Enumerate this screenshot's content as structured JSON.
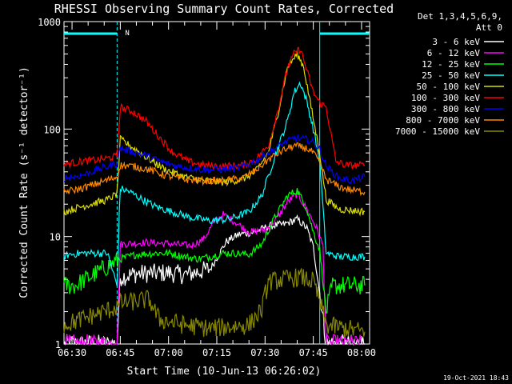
{
  "chart_data": {
    "type": "line",
    "title": "RHESSI Observing Summary Count Rates, Corrected",
    "xlabel": "Start Time (10-Jun-13 06:26:02)",
    "ylabel": "Corrected Count Rate (s⁻¹ detector⁻¹)",
    "y_scale": "log",
    "ylim": [
      1,
      1000
    ],
    "xlim_minutes": [
      6.5,
      101.5
    ],
    "x_tick_labels": [
      "06:30",
      "06:45",
      "07:00",
      "07:15",
      "07:30",
      "07:45",
      "08:00"
    ],
    "x_tick_minutes": [
      9,
      24,
      39,
      54,
      69,
      84,
      99
    ],
    "y_tick_labels": [
      "1",
      "10",
      "100",
      "1000"
    ],
    "y_tick_values": [
      1,
      10,
      100,
      1000
    ],
    "legend_header_1": "Det 1,3,4,5,6,9,",
    "legend_header_2": "Att 0",
    "legend_placement": "right",
    "footer_date": "19-Oct-2021 18:43",
    "night_marker_label": "N",
    "night_intervals_minutes": [
      [
        6.5,
        23
      ],
      [
        86,
        101.5
      ]
    ],
    "series": [
      {
        "name": "3 - 6 keV",
        "color": "#ffffff",
        "x": [
          6.5,
          23,
          24,
          29,
          39,
          44,
          52,
          57,
          61,
          66,
          70,
          75,
          79,
          82,
          84,
          86,
          88,
          100
        ],
        "y": [
          1,
          1,
          4.2,
          4.5,
          4.6,
          4.4,
          5.0,
          9.0,
          10.5,
          11.0,
          12.5,
          13,
          14.5,
          12,
          8,
          3.0,
          1,
          1
        ]
      },
      {
        "name": "6 - 12 keV",
        "color": "#ff00ff",
        "x": [
          6.5,
          23,
          24,
          32,
          39,
          46,
          50,
          53,
          56,
          60,
          64,
          69,
          73,
          76,
          79,
          82,
          85,
          87,
          88,
          90,
          100
        ],
        "y": [
          1,
          1,
          8.5,
          8.8,
          8.6,
          8.2,
          9.5,
          13.5,
          16,
          13.5,
          11,
          11.5,
          15,
          21,
          25,
          18,
          12,
          8.2,
          1,
          1,
          1
        ]
      },
      {
        "name": "12 - 25 keV",
        "color": "#00ff00",
        "x": [
          6.5,
          10,
          24,
          29,
          35,
          39,
          44,
          48,
          52,
          56,
          60,
          64,
          68,
          72,
          76,
          79,
          82,
          84,
          86,
          88,
          90,
          95,
          100
        ],
        "y": [
          3.5,
          3.5,
          6.2,
          6.8,
          7.0,
          7.0,
          6.5,
          6.2,
          6.5,
          7,
          7,
          6.8,
          8.5,
          15,
          24,
          27,
          18,
          11,
          7.5,
          2,
          3.5,
          3.5,
          3.5
        ]
      },
      {
        "name": "25 - 50 keV",
        "color": "#00ffff",
        "x": [
          6.5,
          8,
          12,
          20,
          23,
          24,
          27,
          31,
          35,
          40,
          46,
          52,
          58,
          64,
          68,
          72,
          76,
          78,
          80,
          82,
          84,
          86,
          88,
          92,
          100
        ],
        "y": [
          6.5,
          6.8,
          7,
          7,
          3.5,
          28,
          26,
          22,
          19,
          17,
          15,
          14,
          14.5,
          17,
          24,
          55,
          120,
          220,
          270,
          180,
          100,
          50,
          7,
          6.5,
          6.5
        ]
      },
      {
        "name": "50 - 100 keV",
        "color": "#dddd00",
        "x": [
          6.5,
          12,
          20,
          23,
          24,
          27,
          32,
          38,
          44,
          50,
          56,
          62,
          66,
          70,
          73,
          76,
          79,
          81,
          83,
          86,
          88,
          92,
          100
        ],
        "y": [
          17,
          19,
          22,
          25,
          80,
          70,
          55,
          42,
          36,
          33,
          32,
          34,
          40,
          60,
          140,
          380,
          500,
          380,
          180,
          60,
          22,
          18,
          17
        ]
      },
      {
        "name": "100 - 300 keV",
        "color": "#ff0000",
        "x": [
          6.5,
          12,
          18,
          23,
          24,
          28,
          32,
          36,
          40,
          45,
          50,
          56,
          62,
          66,
          70,
          73,
          76,
          78,
          80,
          82,
          84,
          86,
          88,
          91,
          94,
          100
        ],
        "y": [
          47,
          50,
          52,
          56,
          160,
          145,
          118,
          85,
          62,
          50,
          46,
          45,
          46,
          52,
          70,
          150,
          370,
          500,
          560,
          350,
          220,
          175,
          160,
          50,
          46,
          46
        ]
      },
      {
        "name": "300 - 800 keV",
        "color": "#0000ff",
        "x": [
          6.5,
          12,
          18,
          23,
          24,
          28,
          33,
          38,
          44,
          50,
          56,
          62,
          66,
          70,
          74,
          78,
          82,
          84,
          86,
          88,
          92,
          96,
          100
        ],
        "y": [
          35,
          37,
          43,
          48,
          66,
          62,
          55,
          48,
          44,
          42,
          42,
          44,
          50,
          60,
          72,
          82,
          80,
          75,
          65,
          45,
          35,
          33,
          36
        ]
      },
      {
        "name": "800 - 7000 keV",
        "color": "#ff8800",
        "x": [
          6.5,
          12,
          18,
          23,
          24,
          28,
          33,
          38,
          44,
          50,
          56,
          62,
          66,
          70,
          74,
          78,
          82,
          84,
          86,
          88,
          92,
          96,
          100
        ],
        "y": [
          26,
          28,
          32,
          36,
          46,
          45,
          42,
          37,
          34,
          33,
          33,
          35,
          41,
          52,
          62,
          70,
          66,
          60,
          48,
          34,
          29,
          27,
          26
        ]
      },
      {
        "name": "7000 - 15000 keV",
        "color": "#888800",
        "x": [
          6.5,
          23,
          24,
          33,
          36,
          44,
          52,
          64,
          68,
          70,
          80,
          84,
          86,
          88,
          100
        ],
        "y": [
          1.5,
          2.2,
          2.4,
          2.6,
          1.7,
          1.5,
          1.4,
          1.5,
          2.1,
          3.8,
          4.2,
          3.8,
          2.5,
          1.5,
          1.3
        ]
      }
    ]
  }
}
